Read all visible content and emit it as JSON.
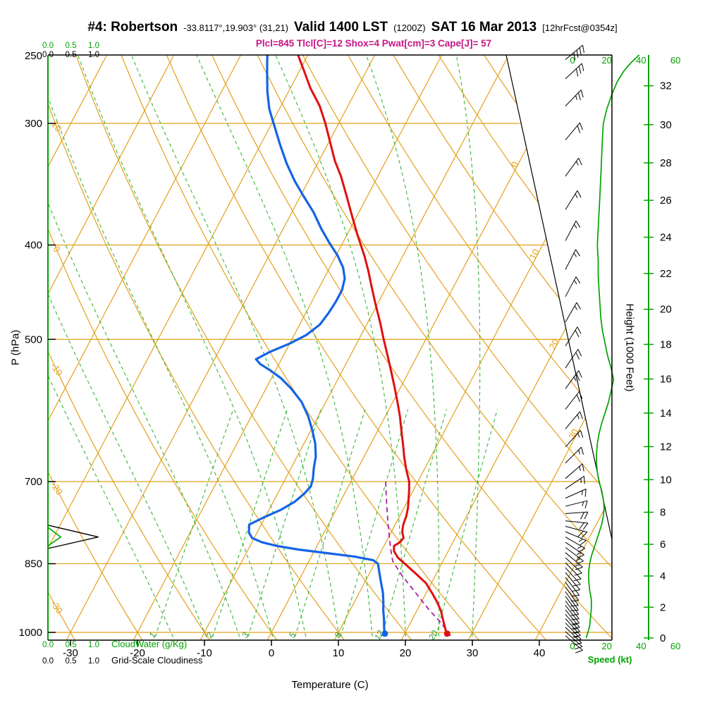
{
  "header": {
    "station": "#4: Robertson",
    "coords": "-33.8117°,19.903° (31,21)",
    "valid": "Valid 1400 LST",
    "valid_z": "(1200Z)",
    "date": "SAT 16 Mar 2013",
    "fcst": "[12hrFcst@0354z]",
    "params": "Plcl=845 Tlcl[C]=12 Shox=4 Pwat[cm]=3 Cape[J]= 57"
  },
  "axes": {
    "pressure": {
      "title": "P (hPa)",
      "ticks": [
        250,
        300,
        400,
        500,
        700,
        850,
        1000
      ]
    },
    "temperature": {
      "title": "Temperature (C)",
      "ticks": [
        -30,
        -20,
        -10,
        0,
        10,
        20,
        30,
        40
      ]
    },
    "height": {
      "title": "Height (1000 Feet)",
      "ticks": [
        0,
        2,
        4,
        6,
        8,
        10,
        12,
        14,
        16,
        18,
        20,
        22,
        24,
        26,
        28,
        30,
        32
      ]
    },
    "speed": {
      "title": "Speed (kt)",
      "ticks": [
        0,
        20,
        40,
        60
      ]
    },
    "cloudwater": {
      "title": "CloudWater (g/Kg)",
      "ticks": [
        "0.0",
        "0.5",
        "1.0"
      ]
    },
    "cloudiness": {
      "title": "Grid-Scale Cloudiness",
      "ticks": [
        "0.0",
        "0.5",
        "1.0"
      ]
    }
  },
  "chart_data": {
    "type": "skewt",
    "pressure_range": [
      1025,
      255
    ],
    "isobars": [
      300,
      400,
      500,
      700,
      850,
      1000
    ],
    "isotherms": [
      -100,
      -90,
      -80,
      -70,
      -60,
      -50,
      -40,
      -30,
      -20,
      -10,
      0,
      10,
      20,
      30,
      40
    ],
    "dry_adiabats": [
      -30,
      -20,
      -10,
      0,
      10,
      20,
      30,
      40,
      50,
      60,
      70,
      80,
      90,
      100,
      110,
      120
    ],
    "mixing_ratio_lines": [
      1,
      2,
      3,
      5,
      8,
      12,
      20
    ],
    "moist_adiabats": [
      -15,
      -10,
      -5,
      0,
      5,
      10,
      15,
      20,
      25,
      30
    ],
    "isotherm_diag_labels": [
      0,
      10,
      20,
      30
    ],
    "adiabat_left_labels": [
      10,
      0,
      -10,
      -20,
      -30
    ],
    "temperature_curve": [
      [
        1008,
        26.5
      ],
      [
        990,
        25.6
      ],
      [
        970,
        24.6
      ],
      [
        950,
        23.6
      ],
      [
        930,
        22.3
      ],
      [
        910,
        20.8
      ],
      [
        890,
        19.2
      ],
      [
        870,
        16.9
      ],
      [
        850,
        14.5
      ],
      [
        838,
        13.0
      ],
      [
        825,
        11.9
      ],
      [
        815,
        11.5
      ],
      [
        808,
        12.1
      ],
      [
        800,
        12.3
      ],
      [
        788,
        11.6
      ],
      [
        775,
        11.2
      ],
      [
        760,
        11.0
      ],
      [
        745,
        10.6
      ],
      [
        730,
        10.0
      ],
      [
        715,
        9.4
      ],
      [
        700,
        8.7
      ],
      [
        680,
        7.3
      ],
      [
        660,
        6.0
      ],
      [
        640,
        4.8
      ],
      [
        620,
        3.5
      ],
      [
        600,
        2.2
      ],
      [
        580,
        0.7
      ],
      [
        560,
        -0.9
      ],
      [
        540,
        -2.6
      ],
      [
        520,
        -4.4
      ],
      [
        500,
        -6.3
      ],
      [
        480,
        -8.2
      ],
      [
        460,
        -10.3
      ],
      [
        440,
        -12.4
      ],
      [
        425,
        -14.0
      ],
      [
        410,
        -15.8
      ],
      [
        390,
        -18.5
      ],
      [
        370,
        -21.2
      ],
      [
        357,
        -23.0
      ],
      [
        340,
        -25.5
      ],
      [
        328,
        -27.6
      ],
      [
        315,
        -29.6
      ],
      [
        300,
        -32.0
      ],
      [
        288,
        -34.2
      ],
      [
        276,
        -37.0
      ],
      [
        265,
        -39.3
      ],
      [
        255,
        -41.5
      ]
    ],
    "dewpoint_curve": [
      [
        1008,
        17.2
      ],
      [
        990,
        16.5
      ],
      [
        970,
        15.8
      ],
      [
        950,
        15.0
      ],
      [
        930,
        14.3
      ],
      [
        910,
        13.5
      ],
      [
        890,
        12.5
      ],
      [
        870,
        11.5
      ],
      [
        850,
        10.5
      ],
      [
        843,
        9.5
      ],
      [
        836,
        6.5
      ],
      [
        829,
        2.0
      ],
      [
        822,
        -2.5
      ],
      [
        815,
        -6.0
      ],
      [
        808,
        -8.5
      ],
      [
        800,
        -10.3
      ],
      [
        790,
        -11.2
      ],
      [
        775,
        -11.8
      ],
      [
        762,
        -10.2
      ],
      [
        748,
        -8.2
      ],
      [
        734,
        -6.8
      ],
      [
        720,
        -6.0
      ],
      [
        708,
        -5.6
      ],
      [
        695,
        -5.9
      ],
      [
        678,
        -6.6
      ],
      [
        660,
        -7.2
      ],
      [
        640,
        -8.3
      ],
      [
        620,
        -9.8
      ],
      [
        600,
        -11.5
      ],
      [
        580,
        -13.6
      ],
      [
        562,
        -16.2
      ],
      [
        548,
        -18.6
      ],
      [
        538,
        -20.8
      ],
      [
        530,
        -22.8
      ],
      [
        524,
        -23.8
      ],
      [
        515,
        -22.3
      ],
      [
        505,
        -20.0
      ],
      [
        495,
        -18.2
      ],
      [
        483,
        -17.0
      ],
      [
        470,
        -16.6
      ],
      [
        457,
        -16.4
      ],
      [
        445,
        -16.4
      ],
      [
        433,
        -16.9
      ],
      [
        422,
        -18.0
      ],
      [
        410,
        -19.8
      ],
      [
        398,
        -22.0
      ],
      [
        385,
        -24.3
      ],
      [
        370,
        -26.8
      ],
      [
        356,
        -29.6
      ],
      [
        344,
        -32.0
      ],
      [
        330,
        -34.6
      ],
      [
        316,
        -37.0
      ],
      [
        303,
        -39.2
      ],
      [
        290,
        -41.5
      ],
      [
        278,
        -43.2
      ],
      [
        266,
        -44.7
      ],
      [
        258,
        -45.7
      ],
      [
        252,
        -46.4
      ]
    ],
    "parcel_curve": [
      [
        1008,
        27.0
      ],
      [
        975,
        24.35
      ],
      [
        950,
        21.95
      ],
      [
        925,
        19.7
      ],
      [
        900,
        17.45
      ],
      [
        875,
        15.1
      ],
      [
        845,
        12.5
      ],
      [
        820,
        11.2
      ],
      [
        800,
        10.2
      ],
      [
        780,
        9.2
      ],
      [
        760,
        8.2
      ],
      [
        740,
        7.2
      ],
      [
        720,
        6.2
      ],
      [
        700,
        5.2
      ]
    ],
    "wind_barbs": [
      [
        1008,
        130,
        12
      ],
      [
        998,
        132,
        12
      ],
      [
        988,
        134,
        12
      ],
      [
        978,
        136,
        13
      ],
      [
        968,
        138,
        13
      ],
      [
        958,
        140,
        13
      ],
      [
        948,
        141,
        13
      ],
      [
        938,
        142,
        12
      ],
      [
        928,
        143,
        12
      ],
      [
        918,
        144,
        12
      ],
      [
        908,
        145,
        11
      ],
      [
        898,
        145,
        11
      ],
      [
        888,
        144,
        10
      ],
      [
        878,
        142,
        10
      ],
      [
        868,
        140,
        10
      ],
      [
        858,
        138,
        10
      ],
      [
        848,
        136,
        11
      ],
      [
        838,
        133,
        12
      ],
      [
        828,
        130,
        13
      ],
      [
        818,
        127,
        14
      ],
      [
        808,
        124,
        15
      ],
      [
        798,
        120,
        16
      ],
      [
        788,
        113,
        17
      ],
      [
        778,
        105,
        18
      ],
      [
        768,
        96,
        18
      ],
      [
        755,
        86,
        18
      ],
      [
        742,
        76,
        17
      ],
      [
        728,
        66,
        16
      ],
      [
        712,
        56,
        15
      ],
      [
        695,
        49,
        15
      ],
      [
        670,
        45,
        14
      ],
      [
        645,
        42,
        15
      ],
      [
        618,
        40,
        17
      ],
      [
        590,
        38,
        20
      ],
      [
        562,
        36,
        23
      ],
      [
        535,
        34,
        22
      ],
      [
        508,
        32,
        19
      ],
      [
        480,
        30,
        17
      ],
      [
        452,
        28,
        16
      ],
      [
        424,
        27,
        15
      ],
      [
        396,
        28,
        15
      ],
      [
        368,
        32,
        16
      ],
      [
        340,
        36,
        17
      ],
      [
        312,
        40,
        19
      ],
      [
        288,
        44,
        24
      ],
      [
        270,
        47,
        31
      ],
      [
        258,
        50,
        40
      ]
    ],
    "speed_profile": [
      [
        1013,
        8
      ],
      [
        1000,
        9
      ],
      [
        985,
        10
      ],
      [
        965,
        10.5
      ],
      [
        945,
        11
      ],
      [
        925,
        11
      ],
      [
        905,
        10
      ],
      [
        885,
        9.5
      ],
      [
        865,
        9.5
      ],
      [
        850,
        10
      ],
      [
        835,
        11
      ],
      [
        820,
        12.5
      ],
      [
        805,
        14
      ],
      [
        790,
        15.5
      ],
      [
        775,
        17
      ],
      [
        760,
        18
      ],
      [
        745,
        18.5
      ],
      [
        730,
        18
      ],
      [
        715,
        17
      ],
      [
        700,
        15.5
      ],
      [
        685,
        14.5
      ],
      [
        670,
        14
      ],
      [
        655,
        14
      ],
      [
        640,
        14.5
      ],
      [
        625,
        15.5
      ],
      [
        610,
        17
      ],
      [
        595,
        19
      ],
      [
        580,
        21
      ],
      [
        565,
        22.5
      ],
      [
        550,
        24
      ],
      [
        535,
        22.5
      ],
      [
        520,
        20.5
      ],
      [
        505,
        19
      ],
      [
        490,
        17.5
      ],
      [
        475,
        16.5
      ],
      [
        460,
        16
      ],
      [
        445,
        15.5
      ],
      [
        430,
        15
      ],
      [
        415,
        15
      ],
      [
        400,
        14.5
      ],
      [
        385,
        15
      ],
      [
        370,
        15.5
      ],
      [
        355,
        16
      ],
      [
        340,
        16.5
      ],
      [
        325,
        17
      ],
      [
        310,
        17.5
      ],
      [
        300,
        18
      ],
      [
        290,
        20
      ],
      [
        280,
        23
      ],
      [
        272,
        26
      ],
      [
        265,
        30
      ],
      [
        260,
        34
      ],
      [
        256,
        38
      ],
      [
        253,
        41
      ],
      [
        251,
        43
      ]
    ],
    "cloudiness_profile": [
      [
        820,
        0
      ],
      [
        798,
        1.1
      ],
      [
        776,
        0
      ]
    ],
    "cloudwater_profile": [
      [
        815,
        0
      ],
      [
        798,
        0.28
      ],
      [
        780,
        0
      ]
    ],
    "colors": {
      "grid": "#e3a11b",
      "moist": "#3cb43c",
      "mixlab": "#2e9e2e",
      "green": "#00a300",
      "temp": "#e01010",
      "dew": "#1464e6",
      "parcel": "#a414a4",
      "wind": "#000000",
      "magenta": "#c71585"
    }
  }
}
